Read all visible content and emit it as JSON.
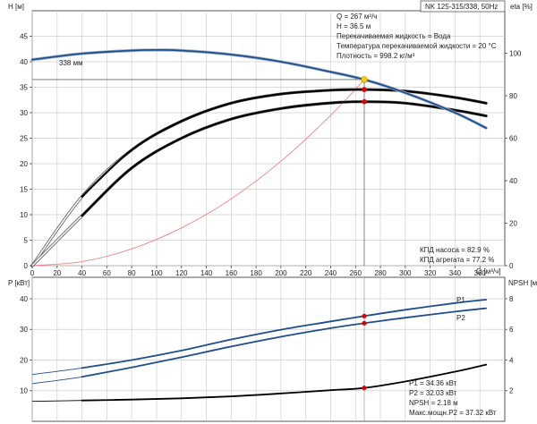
{
  "chart_data": [
    {
      "type": "line",
      "title": "NK 125-315/338, 50Hz",
      "xlabel": "Q [м³/ч]",
      "ylabel": "H [м]",
      "y2label": "eta [%]",
      "xlim": [
        0,
        380
      ],
      "x_ticks": [
        "0",
        "20",
        "40",
        "60",
        "80",
        "100",
        "120",
        "140",
        "160",
        "180",
        "200",
        "220",
        "240",
        "260",
        "280",
        "300",
        "320",
        "340",
        "360"
      ],
      "ylim": [
        0,
        50
      ],
      "y_ticks": [
        "0",
        "5",
        "10",
        "15",
        "20",
        "25",
        "30",
        "35",
        "40",
        "45"
      ],
      "y2lim": [
        0,
        120
      ],
      "y2_ticks": [
        "0",
        "20",
        "40",
        "60",
        "80",
        "100"
      ],
      "grid": true,
      "series": [
        {
          "name": "338 мм",
          "axis": "H",
          "color": "#1f4e8c",
          "x": [
            0,
            40,
            80,
            100,
            120,
            160,
            200,
            240,
            267,
            300,
            340,
            365
          ],
          "y": [
            40.4,
            41.6,
            42.2,
            42.3,
            42.2,
            41.4,
            40.0,
            38.0,
            36.5,
            33.9,
            30.0,
            27.0
          ]
        },
        {
          "name": "system-curve",
          "axis": "H",
          "color": "#f08080",
          "x": [
            0,
            40,
            80,
            120,
            160,
            200,
            240,
            267
          ],
          "y": [
            0,
            0.8,
            3.3,
            7.4,
            13.1,
            20.5,
            29.5,
            36.5
          ]
        },
        {
          "name": "КПД насоса",
          "axis": "eta",
          "color": "#000000",
          "x": [
            0,
            40,
            80,
            120,
            160,
            200,
            240,
            267,
            300,
            340,
            365
          ],
          "y": [
            0,
            32.5,
            54.5,
            68,
            76.5,
            80.8,
            82.6,
            82.9,
            82.2,
            79.2,
            76.5
          ]
        },
        {
          "name": "КПД агрегата",
          "axis": "eta",
          "color": "#000000",
          "x": [
            0,
            40,
            80,
            120,
            160,
            200,
            240,
            267,
            300,
            340,
            365
          ],
          "y": [
            0,
            23.5,
            46,
            60,
            69,
            74,
            76.6,
            77.2,
            76.5,
            73.2,
            70.5
          ]
        }
      ],
      "operating_point": {
        "x": 267,
        "y": 36.5
      },
      "annotations": [
        "Q = 267 м³/ч",
        "H = 36.5 м",
        "Перекачиваемая жидкость = Вода",
        "Температура перекачиваемой жидкости = 20 °C",
        "Плотность = 998.2 кг/м³"
      ],
      "efficiency_labels": [
        "КПД насоса = 82.9 %",
        "КПД агрегата = 77.2 %"
      ]
    },
    {
      "type": "line",
      "ylabel": "P [кВт]",
      "y2label": "NPSH [м]",
      "xlim": [
        0,
        380
      ],
      "ylim": [
        0,
        47
      ],
      "y_ticks": [
        "10",
        "20",
        "30",
        "40"
      ],
      "y2lim": [
        0,
        9.4
      ],
      "y2_ticks": [
        "2",
        "4",
        "6",
        "8"
      ],
      "grid": true,
      "series": [
        {
          "name": "P1",
          "axis": "P",
          "color": "#1f4e8c",
          "x": [
            0,
            40,
            80,
            120,
            160,
            200,
            240,
            267,
            300,
            340,
            365
          ],
          "y": [
            15.3,
            17.4,
            20.0,
            23.1,
            26.7,
            29.9,
            32.6,
            34.36,
            36.4,
            38.6,
            39.7
          ]
        },
        {
          "name": "P2",
          "axis": "P",
          "color": "#1f4e8c",
          "x": [
            0,
            40,
            80,
            120,
            160,
            200,
            240,
            267,
            300,
            340,
            365
          ],
          "y": [
            12.3,
            14.5,
            17.6,
            20.9,
            24.4,
            27.6,
            30.4,
            32.03,
            33.8,
            35.8,
            36.9
          ]
        },
        {
          "name": "NPSH",
          "axis": "NPSH",
          "color": "#000000",
          "x": [
            0,
            40,
            80,
            120,
            160,
            200,
            240,
            267,
            300,
            340,
            365
          ],
          "y": [
            1.3,
            1.36,
            1.42,
            1.5,
            1.63,
            1.82,
            2.03,
            2.18,
            2.6,
            3.24,
            3.7
          ]
        }
      ],
      "operating_point_x": 267,
      "annotations": [
        "P1 = 34.36 кВт",
        "P2 = 32.03 кВт",
        "NPSH = 2.18 м",
        "Макс.мощн.P2 = 37.32 кВт"
      ]
    }
  ],
  "colors": {
    "curve_blue": "#1f4e8c",
    "curve_dark": "#000000",
    "system_curve": "#f08080",
    "operating_point": "#ffcc00",
    "marker_red": "#e00000",
    "grid": "#cfcfcf"
  }
}
